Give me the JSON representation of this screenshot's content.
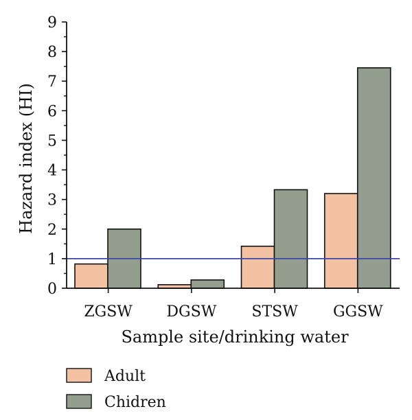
{
  "chart_data": {
    "type": "bar",
    "title": "",
    "xlabel": "Sample site/drinking water",
    "ylabel": "Hazard index (HI)",
    "categories": [
      "ZGSW",
      "DGSW",
      "STSW",
      "GGSW"
    ],
    "series": [
      {
        "name": "Adult",
        "values": [
          0.82,
          0.12,
          1.42,
          3.2
        ],
        "color": "#f2c2a2"
      },
      {
        "name": "Chidren",
        "values": [
          2.0,
          0.28,
          3.33,
          7.45
        ],
        "color": "#939e8e"
      }
    ],
    "ylim": [
      0,
      9
    ],
    "yticks": [
      0,
      1,
      2,
      3,
      4,
      5,
      6,
      7,
      8,
      9
    ],
    "reference_line": {
      "y": 1,
      "color": "#3a46b0"
    },
    "grid": false,
    "legend_position": "bottom-left"
  }
}
